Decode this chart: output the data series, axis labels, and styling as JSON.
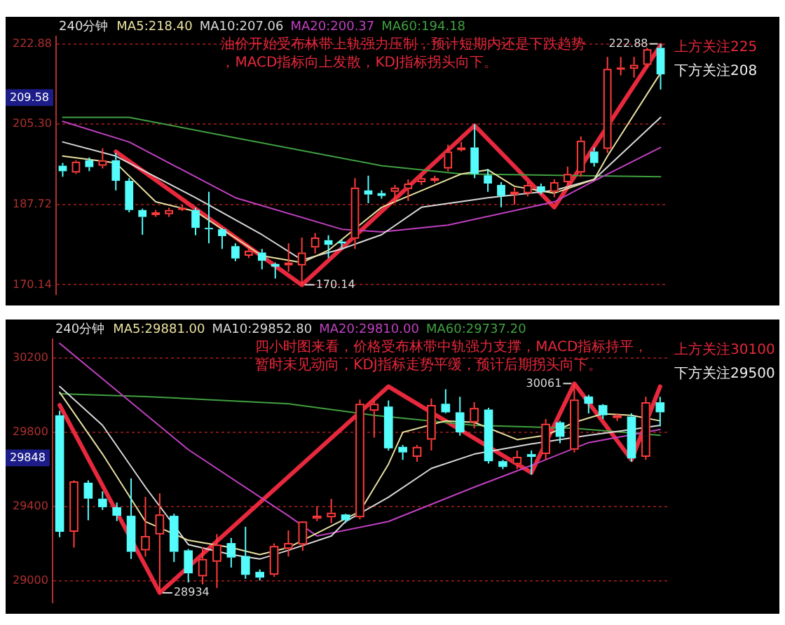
{
  "chart_data": [
    {
      "type": "candlestick",
      "title": "240分钟",
      "legend": "top left",
      "grid": "y",
      "tick_labels": "y",
      "categories": [
        null,
        null,
        null,
        null,
        null,
        null,
        null,
        null,
        null,
        null,
        null,
        null,
        null,
        null,
        null,
        null,
        null,
        null,
        null,
        null,
        null,
        null,
        null,
        null,
        null,
        null,
        null,
        null,
        null,
        null,
        null,
        null,
        null,
        null,
        null,
        null,
        null,
        null,
        null,
        null,
        null,
        null,
        null,
        null,
        null,
        null
      ],
      "ohlc": [
        [
          196.2,
          196.8,
          193.8,
          195.0
        ],
        [
          194.7,
          197.4,
          194.4,
          197.1
        ],
        [
          197.4,
          198.0,
          195.0,
          195.9
        ],
        [
          196.2,
          200.0,
          195.6,
          197.4
        ],
        [
          197.4,
          199.0,
          190.8,
          192.9
        ],
        [
          192.9,
          193.5,
          186.0,
          186.5
        ],
        [
          186.5,
          186.8,
          181.1,
          185.0
        ],
        [
          185.4,
          186.5,
          185.0,
          186.0
        ],
        [
          185.6,
          187.0,
          185.0,
          186.5
        ],
        [
          186.8,
          187.7,
          186.3,
          187.0
        ],
        [
          186.5,
          187.0,
          181.0,
          182.6
        ],
        [
          182.6,
          190.5,
          179.2,
          182.3
        ],
        [
          182.3,
          182.6,
          178.0,
          180.8
        ],
        [
          178.6,
          179.2,
          175.3,
          175.9
        ],
        [
          176.5,
          178.0,
          176.0,
          177.6
        ],
        [
          177.2,
          178.0,
          173.5,
          175.4
        ],
        [
          174.7,
          175.0,
          171.5,
          174.1
        ],
        [
          174.4,
          179.2,
          173.0,
          175.0
        ],
        [
          174.4,
          180.5,
          170.14,
          177.2
        ],
        [
          178.3,
          181.5,
          177.0,
          180.5
        ],
        [
          179.9,
          181.0,
          176.0,
          178.9
        ],
        [
          179.6,
          180.0,
          178.0,
          179.2
        ],
        [
          180.2,
          193.5,
          178.0,
          191.4
        ],
        [
          190.8,
          194.0,
          188.0,
          189.9
        ],
        [
          190.2,
          190.8,
          189.0,
          189.6
        ],
        [
          190.5,
          192.0,
          188.0,
          191.4
        ],
        [
          191.1,
          193.2,
          188.5,
          192.3
        ],
        [
          192.6,
          194.0,
          192.0,
          193.5
        ],
        [
          192.9,
          194.0,
          192.5,
          193.5
        ],
        [
          195.6,
          200.8,
          195.0,
          199.3
        ],
        [
          199.6,
          201.4,
          199.3,
          200.2
        ],
        [
          200.2,
          205.3,
          193.5,
          194.4
        ],
        [
          194.1,
          195.5,
          190.5,
          192.3
        ],
        [
          192.0,
          192.6,
          187.1,
          189.6
        ],
        [
          189.9,
          191.4,
          187.7,
          190.5
        ],
        [
          190.2,
          192.6,
          189.5,
          192.0
        ],
        [
          191.7,
          192.3,
          189.9,
          190.5
        ],
        [
          190.5,
          193.2,
          189.3,
          192.6
        ],
        [
          192.6,
          196.0,
          191.7,
          194.4
        ],
        [
          194.7,
          202.6,
          193.8,
          201.7
        ],
        [
          199.3,
          200.2,
          196.0,
          196.8
        ],
        [
          199.9,
          220.0,
          199.0,
          217.4
        ],
        [
          217.4,
          220.0,
          216.0,
          217.7
        ],
        [
          217.4,
          220.0,
          215.5,
          218.3
        ],
        [
          218.3,
          222.0,
          217.7,
          221.7
        ],
        [
          222.0,
          222.88,
          212.9,
          216.2
        ]
      ],
      "series": [
        {
          "type": "line",
          "name": "MA5:218.40",
          "color": "#e8e0a0",
          "values": [
            198.3,
            null,
            null,
            null,
            196.8,
            null,
            null,
            188.3,
            null,
            null,
            186.2,
            null,
            null,
            null,
            null,
            176.5,
            null,
            null,
            175.0,
            null,
            177.7,
            null,
            null,
            null,
            187.1,
            null,
            null,
            null,
            null,
            null,
            194.4,
            null,
            195.3,
            null,
            191.7,
            null,
            null,
            190.2,
            null,
            null,
            193.2,
            198.3,
            null,
            null,
            null,
            216.5
          ]
        },
        {
          "type": "line",
          "name": "MA10:207.06",
          "color": "#d8d8d8",
          "values": [
            201.4,
            null,
            null,
            null,
            198.3,
            null,
            null,
            null,
            null,
            null,
            189.2,
            null,
            null,
            null,
            null,
            181.1,
            null,
            null,
            175.6,
            null,
            null,
            178.0,
            null,
            null,
            181.1,
            null,
            null,
            187.1,
            null,
            null,
            null,
            null,
            189.2,
            null,
            null,
            null,
            null,
            190.8,
            null,
            null,
            193.2,
            null,
            null,
            null,
            null,
            206.8
          ]
        },
        {
          "type": "line",
          "name": "MA20:200.37",
          "color": "#c040c0",
          "values": [
            205.9,
            null,
            null,
            null,
            null,
            201.4,
            null,
            null,
            null,
            null,
            null,
            null,
            null,
            189.2,
            null,
            null,
            null,
            null,
            null,
            null,
            null,
            182.3,
            null,
            null,
            181.7,
            null,
            null,
            null,
            null,
            183.2,
            null,
            null,
            null,
            null,
            null,
            null,
            null,
            188.3,
            null,
            null,
            192.9,
            null,
            null,
            null,
            null,
            200.2
          ]
        },
        {
          "type": "line",
          "name": "MA60:194.18",
          "color": "#40a040",
          "values": [
            206.8,
            null,
            null,
            null,
            null,
            206.8,
            null,
            null,
            null,
            null,
            null,
            null,
            null,
            202.3,
            null,
            null,
            null,
            null,
            null,
            null,
            null,
            null,
            null,
            null,
            196.2,
            null,
            null,
            null,
            null,
            null,
            194.4,
            null,
            null,
            null,
            null,
            null,
            null,
            null,
            null,
            null,
            null,
            null,
            null,
            null,
            null,
            193.8
          ]
        },
        {
          "type": "line",
          "color": "#e8283c",
          "values": [
            null,
            null,
            null,
            null,
            199.3,
            null,
            null,
            null,
            null,
            null,
            null,
            null,
            null,
            null,
            null,
            null,
            null,
            null,
            170.1,
            null,
            null,
            null,
            null,
            null,
            null,
            null,
            null,
            null,
            null,
            null,
            null,
            205.0,
            null,
            null,
            null,
            null,
            null,
            187.1,
            null,
            null,
            null,
            null,
            null,
            null,
            null,
            222.6
          ]
        }
      ],
      "ylim": [
        168,
        224.5
      ],
      "yticks": [
        170.14,
        187.72,
        {
          "value": 205.3,
          "label": "205.30"
        },
        222.88
      ],
      "annotations": [
        "油价开始受布林带上轨强力压制，预计短期内还是下跌趋势，MACD指标向上发散，KDJ指标拐头向下。",
        "上方关注225",
        "下方关注208",
        "170.14",
        "222.88",
        "209.58"
      ]
    },
    {
      "type": "candlestick",
      "title": "240分钟",
      "legend": "top left",
      "grid": "y",
      "tick_labels": "y",
      "categories": [
        null,
        null,
        null,
        null,
        null,
        null,
        null,
        null,
        null,
        null,
        null,
        null,
        null,
        null,
        null,
        null,
        null,
        null,
        null,
        null,
        null,
        null,
        null,
        null,
        null,
        null,
        null,
        null,
        null,
        null,
        null,
        null,
        null,
        null,
        null,
        null,
        null,
        null,
        null,
        null,
        null,
        null,
        null
      ],
      "ohlc": [
        [
          29890,
          29914,
          29233,
          29263
        ],
        [
          29263,
          29540,
          29178,
          29534
        ],
        [
          29527,
          29540,
          29325,
          29441
        ],
        [
          29441,
          29480,
          29380,
          29395
        ],
        [
          29395,
          29420,
          29320,
          29349
        ],
        [
          29349,
          29550,
          29116,
          29155
        ],
        [
          29163,
          29450,
          29130,
          29240
        ],
        [
          29248,
          29470,
          28934,
          29356
        ],
        [
          29349,
          29360,
          29100,
          29155
        ],
        [
          29163,
          29170,
          28990,
          29039
        ],
        [
          29023,
          29180,
          28980,
          29116
        ],
        [
          29101,
          29250,
          28960,
          29194
        ],
        [
          29202,
          29230,
          29070,
          29124
        ],
        [
          29132,
          29290,
          29010,
          29031
        ],
        [
          29047,
          29060,
          29000,
          29016
        ],
        [
          29031,
          29200,
          29020,
          29186
        ],
        [
          29171,
          29270,
          29130,
          29202
        ],
        [
          29194,
          29320,
          29160,
          29318
        ],
        [
          29333,
          29400,
          29320,
          29349
        ],
        [
          29341,
          29440,
          29310,
          29365
        ],
        [
          29356,
          29360,
          29310,
          29325
        ],
        [
          29341,
          29975,
          29330,
          29952
        ],
        [
          29914,
          29975,
          29770,
          29952
        ],
        [
          29937,
          29970,
          29700,
          29712
        ],
        [
          29720,
          29730,
          29650,
          29690
        ],
        [
          29666,
          29730,
          29640,
          29720
        ],
        [
          29759,
          29980,
          29700,
          29945
        ],
        [
          29952,
          30030,
          29900,
          29906
        ],
        [
          29906,
          29990,
          29780,
          29798
        ],
        [
          29852,
          29960,
          29820,
          29929
        ],
        [
          29921,
          29930,
          29630,
          29643
        ],
        [
          29643,
          29650,
          29600,
          29612
        ],
        [
          29627,
          29700,
          29600,
          29666
        ],
        [
          29681,
          29700,
          29570,
          29666
        ],
        [
          29681,
          29870,
          29650,
          29844
        ],
        [
          29852,
          29860,
          29740,
          29774
        ],
        [
          29705,
          30061,
          29690,
          29975
        ],
        [
          29991,
          30000,
          29900,
          29952
        ],
        [
          29945,
          29950,
          29870,
          29890
        ],
        [
          29875,
          29900,
          29860,
          29890
        ],
        [
          29883,
          29900,
          29640,
          29658
        ],
        [
          29666,
          29990,
          29650,
          29960
        ],
        [
          29960,
          29990,
          29830,
          29906
        ]
      ],
      "series": [
        {
          "type": "line",
          "name": "MA5:29881.00",
          "color": "#e8e0a0",
          "values": [
            30014,
            null,
            null,
            29681,
            null,
            null,
            29318,
            null,
            null,
            29217,
            null,
            null,
            29178,
            null,
            29140,
            null,
            29178,
            null,
            null,
            29294,
            null,
            29372,
            null,
            29627,
            29798,
            null,
            null,
            29860,
            null,
            29852,
            null,
            null,
            29759,
            null,
            29782,
            null,
            29852,
            null,
            29898,
            null,
            29890,
            null,
            29860
          ]
        },
        {
          "type": "line",
          "name": "MA10:29852.80",
          "color": "#d8d8d8",
          "values": [
            30045,
            null,
            null,
            29836,
            null,
            null,
            29503,
            null,
            null,
            29194,
            null,
            null,
            29140,
            null,
            29116,
            null,
            29163,
            null,
            null,
            29240,
            29318,
            null,
            null,
            29449,
            null,
            null,
            29604,
            null,
            null,
            29681,
            null,
            null,
            null,
            29736,
            null,
            null,
            null,
            29782,
            null,
            null,
            29813,
            null,
            29836
          ]
        },
        {
          "type": "line",
          "name": "MA20:29810.00",
          "color": "#c040c0",
          "values": [
            30277,
            null,
            null,
            null,
            null,
            null,
            null,
            null,
            null,
            29705,
            null,
            null,
            null,
            null,
            null,
            null,
            29349,
            null,
            29240,
            null,
            null,
            null,
            null,
            29318,
            null,
            null,
            null,
            null,
            null,
            29503,
            null,
            null,
            null,
            29620,
            null,
            null,
            null,
            29743,
            null,
            null,
            null,
            null,
            29813
          ]
        },
        {
          "type": "line",
          "name": "MA60:29737.20",
          "color": "#40a040",
          "values": [
            30006,
            null,
            null,
            null,
            null,
            null,
            29991,
            null,
            null,
            null,
            null,
            null,
            null,
            null,
            null,
            null,
            29952,
            null,
            null,
            null,
            null,
            null,
            29890,
            null,
            null,
            null,
            null,
            null,
            null,
            29836,
            null,
            null,
            null,
            null,
            null,
            null,
            29820,
            null,
            null,
            null,
            null,
            null,
            29782
          ]
        },
        {
          "type": "line",
          "color": "#e8283c",
          "values": [
            29945,
            null,
            null,
            null,
            null,
            null,
            null,
            28934,
            null,
            null,
            null,
            null,
            null,
            null,
            null,
            null,
            null,
            null,
            null,
            null,
            null,
            null,
            null,
            30045,
            null,
            null,
            null,
            null,
            null,
            null,
            null,
            null,
            null,
            29581,
            null,
            null,
            30061,
            null,
            null,
            null,
            29650,
            null,
            30045
          ]
        }
      ],
      "ylim": [
        28880,
        30300
      ],
      "yticks": [
        29000,
        29400,
        29800,
        30200
      ],
      "annotations": [
        "四小时图来看，价格受布林带中轨强力支撑，MACD指标持平，暂时未见动向，KDJ指标走势平缓，预计后期拐头向下。",
        "上方关注30100",
        "下方关注29500",
        "28934",
        "30061",
        "29848"
      ]
    }
  ]
}
